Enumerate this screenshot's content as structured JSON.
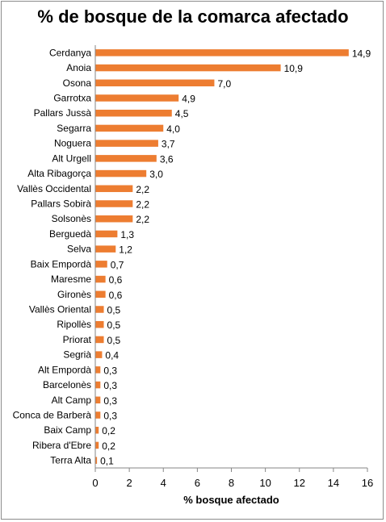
{
  "chart_data": {
    "type": "bar",
    "orientation": "horizontal",
    "title": "% de bosque de la comarca afectado",
    "xlabel": "% bosque afectado",
    "ylabel": "",
    "xlim": [
      0,
      16
    ],
    "xticks": [
      0,
      2,
      4,
      6,
      8,
      10,
      12,
      14,
      16
    ],
    "grid": false,
    "bar_color": "#ED7D31",
    "categories": [
      "Cerdanya",
      "Anoia",
      "Osona",
      "Garrotxa",
      "Pallars Jussà",
      "Segarra",
      "Noguera",
      "Alt Urgell",
      "Alta Ribagorça",
      "Vallès Occidental",
      "Pallars Sobirà",
      "Solsonès",
      "Berguedà",
      "Selva",
      "Baix Empordà",
      "Maresme",
      "Gironès",
      "Vallès Oriental",
      "Ripollès",
      "Priorat",
      "Segrià",
      "Alt Empordà",
      "Barcelonès",
      "Alt Camp",
      "Conca de Barberà",
      "Baix Camp",
      "Ribera d'Ebre",
      "Terra Alta"
    ],
    "values": [
      14.9,
      10.9,
      7.0,
      4.9,
      4.5,
      4.0,
      3.7,
      3.6,
      3.0,
      2.2,
      2.2,
      2.2,
      1.3,
      1.2,
      0.7,
      0.6,
      0.6,
      0.5,
      0.5,
      0.5,
      0.4,
      0.3,
      0.3,
      0.3,
      0.3,
      0.2,
      0.2,
      0.1
    ],
    "data_labels": [
      "14,9",
      "10,9",
      "7,0",
      "4,9",
      "4,5",
      "4,0",
      "3,7",
      "3,6",
      "3,0",
      "2,2",
      "2,2",
      "2,2",
      "1,3",
      "1,2",
      "0,7",
      "0,6",
      "0,6",
      "0,5",
      "0,5",
      "0,5",
      "0,4",
      "0,3",
      "0,3",
      "0,3",
      "0,3",
      "0,2",
      "0,2",
      "0,1"
    ]
  }
}
